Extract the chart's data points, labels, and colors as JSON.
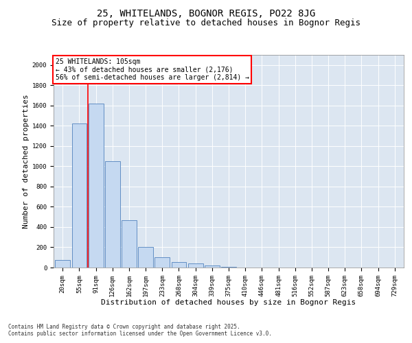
{
  "title1": "25, WHITELANDS, BOGNOR REGIS, PO22 8JG",
  "title2": "Size of property relative to detached houses in Bognor Regis",
  "xlabel": "Distribution of detached houses by size in Bognor Regis",
  "ylabel": "Number of detached properties",
  "categories": [
    "20sqm",
    "55sqm",
    "91sqm",
    "126sqm",
    "162sqm",
    "197sqm",
    "233sqm",
    "268sqm",
    "304sqm",
    "339sqm",
    "375sqm",
    "410sqm",
    "446sqm",
    "481sqm",
    "516sqm",
    "552sqm",
    "587sqm",
    "623sqm",
    "658sqm",
    "694sqm",
    "729sqm"
  ],
  "values": [
    75,
    1420,
    1620,
    1050,
    470,
    200,
    105,
    55,
    40,
    20,
    10,
    0,
    0,
    0,
    0,
    0,
    0,
    0,
    0,
    0,
    0
  ],
  "bar_color": "#c5d9f1",
  "bar_edge_color": "#4f81bd",
  "red_line_x": 1.5,
  "annotation_line1": "25 WHITELANDS: 105sqm",
  "annotation_line2": "← 43% of detached houses are smaller (2,176)",
  "annotation_line3": "56% of semi-detached houses are larger (2,814) →",
  "ylim_max": 2100,
  "yticks": [
    0,
    200,
    400,
    600,
    800,
    1000,
    1200,
    1400,
    1600,
    1800,
    2000
  ],
  "footnote1": "Contains HM Land Registry data © Crown copyright and database right 2025.",
  "footnote2": "Contains public sector information licensed under the Open Government Licence v3.0.",
  "fig_bg_color": "#ffffff",
  "plot_bg_color": "#dce6f1",
  "title_fontsize": 10,
  "subtitle_fontsize": 9,
  "tick_fontsize": 6.5,
  "label_fontsize": 8,
  "annot_fontsize": 7,
  "footnote_fontsize": 5.5
}
